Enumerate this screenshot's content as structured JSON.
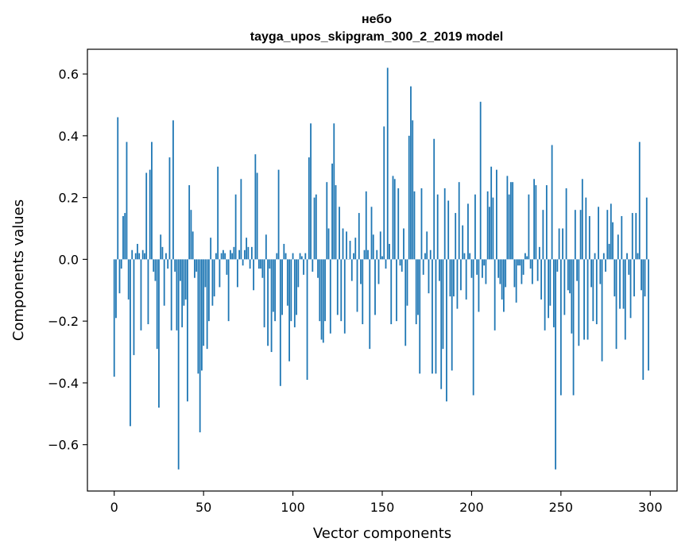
{
  "chart_data": {
    "type": "bar",
    "title": "небо",
    "subtitle": "tayga_upos_skipgram_300_2_2019 model",
    "xlabel": "Vector components",
    "ylabel": "Components values",
    "xlim": [
      -15,
      315
    ],
    "ylim": [
      -0.75,
      0.68
    ],
    "xticks": [
      0,
      50,
      100,
      150,
      200,
      250,
      300
    ],
    "xtick_labels": [
      "0",
      "50",
      "100",
      "150",
      "200",
      "250",
      "300"
    ],
    "yticks": [
      0.6,
      0.4,
      0.2,
      0.0,
      -0.2,
      -0.4,
      -0.6
    ],
    "ytick_labels": [
      "0.6",
      "0.4",
      "0.2",
      "0.0",
      "−0.2",
      "−0.4",
      "−0.6"
    ],
    "color": "#1f77b4",
    "grid": false,
    "x": "0..299",
    "values": [
      -0.38,
      -0.19,
      0.46,
      -0.11,
      -0.03,
      0.14,
      0.15,
      0.38,
      -0.13,
      -0.54,
      0.03,
      -0.31,
      0.02,
      0.05,
      0.02,
      -0.23,
      0.03,
      0.02,
      0.28,
      -0.21,
      0.29,
      0.38,
      -0.04,
      -0.07,
      -0.29,
      -0.48,
      0.08,
      0.04,
      -0.15,
      0.02,
      -0.03,
      0.33,
      -0.23,
      0.45,
      -0.04,
      -0.23,
      -0.68,
      -0.07,
      -0.22,
      -0.15,
      -0.13,
      -0.46,
      0.24,
      0.16,
      0.09,
      -0.06,
      -0.04,
      -0.37,
      -0.56,
      -0.36,
      -0.28,
      -0.09,
      -0.29,
      -0.2,
      0.07,
      -0.15,
      -0.12,
      0.02,
      0.3,
      -0.09,
      0.02,
      0.03,
      0.02,
      -0.05,
      -0.2,
      0.03,
      0.02,
      0.04,
      0.21,
      -0.09,
      0.03,
      0.26,
      -0.02,
      0.03,
      0.07,
      0.04,
      -0.03,
      0.04,
      -0.1,
      0.34,
      0.28,
      -0.03,
      -0.03,
      -0.06,
      -0.22,
      0.08,
      -0.28,
      -0.03,
      -0.3,
      -0.17,
      -0.2,
      0.02,
      0.29,
      -0.41,
      -0.18,
      0.05,
      0.02,
      -0.15,
      -0.33,
      -0.2,
      0.02,
      -0.22,
      -0.18,
      -0.09,
      0.02,
      0.01,
      -0.05,
      0.02,
      -0.39,
      0.33,
      0.44,
      -0.04,
      0.2,
      0.21,
      -0.06,
      -0.2,
      -0.26,
      -0.27,
      -0.2,
      0.25,
      0.1,
      -0.24,
      0.31,
      0.44,
      0.24,
      -0.18,
      0.17,
      -0.2,
      0.1,
      -0.24,
      0.09,
      0.0,
      0.06,
      -0.07,
      0.02,
      0.07,
      -0.17,
      0.15,
      -0.08,
      -0.21,
      0.03,
      0.22,
      0.03,
      -0.29,
      0.17,
      0.08,
      -0.18,
      0.03,
      -0.08,
      0.09,
      0.01,
      0.43,
      -0.03,
      0.62,
      0.05,
      -0.21,
      0.27,
      0.26,
      -0.2,
      0.23,
      -0.02,
      -0.04,
      0.1,
      -0.28,
      -0.15,
      0.4,
      0.56,
      0.45,
      0.22,
      -0.21,
      -0.18,
      -0.37,
      0.23,
      -0.05,
      0.02,
      0.09,
      -0.11,
      0.03,
      -0.37,
      0.39,
      -0.37,
      0.21,
      -0.07,
      -0.42,
      -0.29,
      0.23,
      -0.46,
      0.19,
      -0.12,
      -0.36,
      -0.12,
      0.15,
      -0.16,
      0.25,
      -0.1,
      0.11,
      0.02,
      -0.13,
      0.18,
      0.02,
      -0.06,
      -0.44,
      0.21,
      -0.05,
      -0.17,
      0.51,
      -0.06,
      -0.02,
      -0.08,
      0.22,
      0.17,
      0.3,
      0.2,
      -0.23,
      0.29,
      -0.06,
      -0.08,
      -0.13,
      -0.17,
      -0.09,
      0.27,
      0.21,
      0.25,
      0.25,
      -0.09,
      -0.14,
      -0.02,
      -0.02,
      -0.08,
      -0.05,
      0.02,
      0.01,
      0.21,
      -0.03,
      -0.08,
      0.26,
      0.24,
      -0.07,
      0.04,
      -0.13,
      0.16,
      -0.23,
      0.24,
      -0.19,
      -0.15,
      0.37,
      -0.22,
      -0.68,
      -0.04,
      0.1,
      -0.44,
      0.1,
      -0.18,
      0.23,
      -0.1,
      -0.11,
      -0.24,
      -0.44,
      0.16,
      -0.07,
      -0.28,
      0.16,
      0.26,
      -0.26,
      0.2,
      -0.26,
      0.14,
      -0.09,
      -0.2,
      0.02,
      -0.21,
      0.17,
      -0.08,
      -0.33,
      0.02,
      -0.04,
      0.16,
      0.05,
      0.18,
      0.12,
      -0.12,
      -0.29,
      0.08,
      -0.16,
      0.14,
      -0.16,
      -0.26,
      0.02,
      -0.05,
      -0.19,
      0.15,
      -0.12,
      0.15,
      0.02,
      0.38,
      -0.1,
      -0.39,
      -0.12,
      0.2,
      -0.36
    ]
  }
}
